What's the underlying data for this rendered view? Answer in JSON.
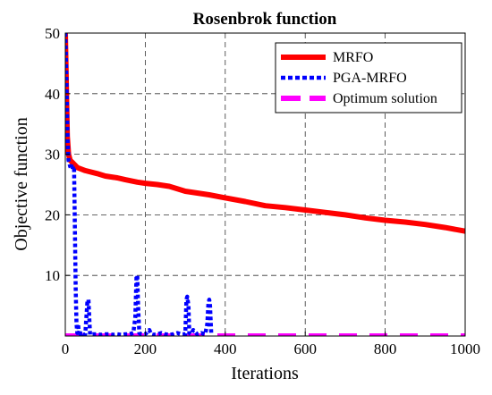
{
  "chart_data": {
    "type": "line",
    "title": "Rosenbrok function",
    "xlabel": "Iterations",
    "ylabel": "Objective function",
    "xlim": [
      0,
      1000
    ],
    "ylim": [
      0,
      50
    ],
    "xticks": [
      0,
      200,
      400,
      600,
      800,
      1000
    ],
    "yticks": [
      10,
      20,
      30,
      40,
      50
    ],
    "grid": true,
    "legend_position": "top-right",
    "series": [
      {
        "name": "MRFO",
        "color": "#ff0000",
        "style": "solid",
        "x": [
          0,
          3,
          5,
          8,
          12,
          20,
          30,
          50,
          80,
          100,
          130,
          150,
          180,
          200,
          230,
          260,
          280,
          300,
          330,
          360,
          400,
          450,
          500,
          550,
          600,
          650,
          700,
          750,
          800,
          850,
          900,
          950,
          1000
        ],
        "y": [
          50,
          40,
          33,
          30,
          29,
          28.5,
          27.8,
          27.3,
          26.8,
          26.4,
          26.1,
          25.8,
          25.4,
          25.2,
          25.0,
          24.7,
          24.3,
          23.9,
          23.6,
          23.3,
          22.8,
          22.2,
          21.5,
          21.2,
          20.8,
          20.4,
          20.0,
          19.5,
          19.1,
          18.8,
          18.4,
          17.9,
          17.3
        ]
      },
      {
        "name": "PGA-MRFO",
        "color": "#0000ff",
        "style": "dotted",
        "x": [
          0,
          2,
          4,
          6,
          8,
          10,
          12,
          15,
          18,
          20,
          22,
          24,
          26,
          28,
          30,
          32,
          34,
          36,
          38,
          40,
          45,
          50,
          55,
          58,
          62,
          70,
          80,
          90,
          100,
          110,
          120,
          130,
          140,
          150,
          160,
          170,
          175,
          178,
          180,
          182,
          185,
          190,
          200,
          210,
          215,
          220,
          230,
          240,
          250,
          260,
          270,
          280,
          290,
          300,
          303,
          305,
          308,
          310,
          315,
          320,
          330,
          340,
          350,
          355,
          358,
          360,
          362,
          365
        ],
        "y": [
          50,
          45,
          38,
          32,
          29,
          28.5,
          28,
          27.5,
          27.5,
          28,
          28,
          18,
          8,
          2,
          0.5,
          2,
          0.5,
          1,
          0.3,
          0.5,
          0.2,
          0.3,
          5.5,
          6,
          0.2,
          0.3,
          0.3,
          0.2,
          0.3,
          0.3,
          0.2,
          0.3,
          0.2,
          0.3,
          0.3,
          0.5,
          3,
          10,
          10,
          5,
          0.5,
          0.3,
          0.3,
          1,
          0.3,
          0.2,
          0.3,
          0.5,
          0.3,
          0.2,
          0.3,
          0.5,
          0.3,
          0.3,
          6,
          6.5,
          5,
          0.5,
          0.3,
          1,
          0.3,
          0.5,
          0.3,
          2,
          5.5,
          6,
          5,
          0.3
        ]
      },
      {
        "name": "Optimum solution",
        "color": "#ff00ff",
        "style": "dashed",
        "x": [
          0,
          1000
        ],
        "y": [
          0,
          0
        ]
      }
    ]
  }
}
